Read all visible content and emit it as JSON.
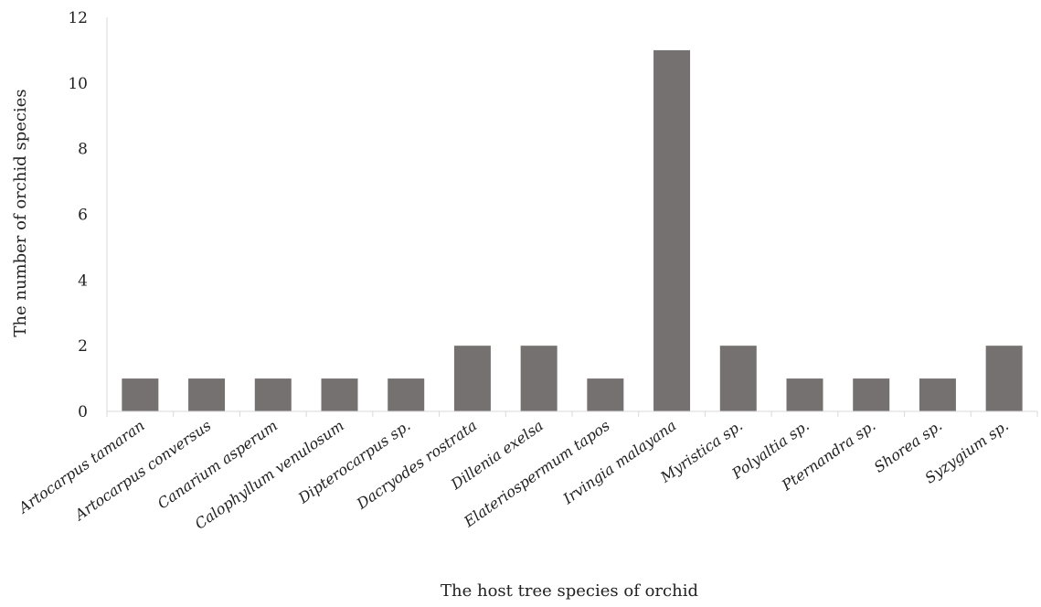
{
  "chart_data": {
    "type": "bar",
    "title": "",
    "xlabel": "The host tree species of orchid",
    "ylabel": "The number of orchid species",
    "ylim": [
      0,
      12
    ],
    "yticks": [
      0,
      2,
      4,
      6,
      8,
      10,
      12
    ],
    "grid": false,
    "legend": "none",
    "bar_color": "#757170",
    "categories": [
      "Artocarpus tamaran",
      "Artocarpus conversus",
      "Canarium asperum",
      "Calophyllum venulosum",
      "Dipterocarpus sp.",
      "Dacryodes rostrata",
      "Dillenia exelsa",
      "Elateriospermum tapos",
      "Irvingia malayana",
      "Myristica sp.",
      "Polyaltia sp.",
      "Pternandra sp.",
      "Shorea sp.",
      "Syzygium sp."
    ],
    "values": [
      1,
      1,
      1,
      1,
      1,
      2,
      2,
      1,
      11,
      2,
      1,
      1,
      1,
      2
    ]
  }
}
